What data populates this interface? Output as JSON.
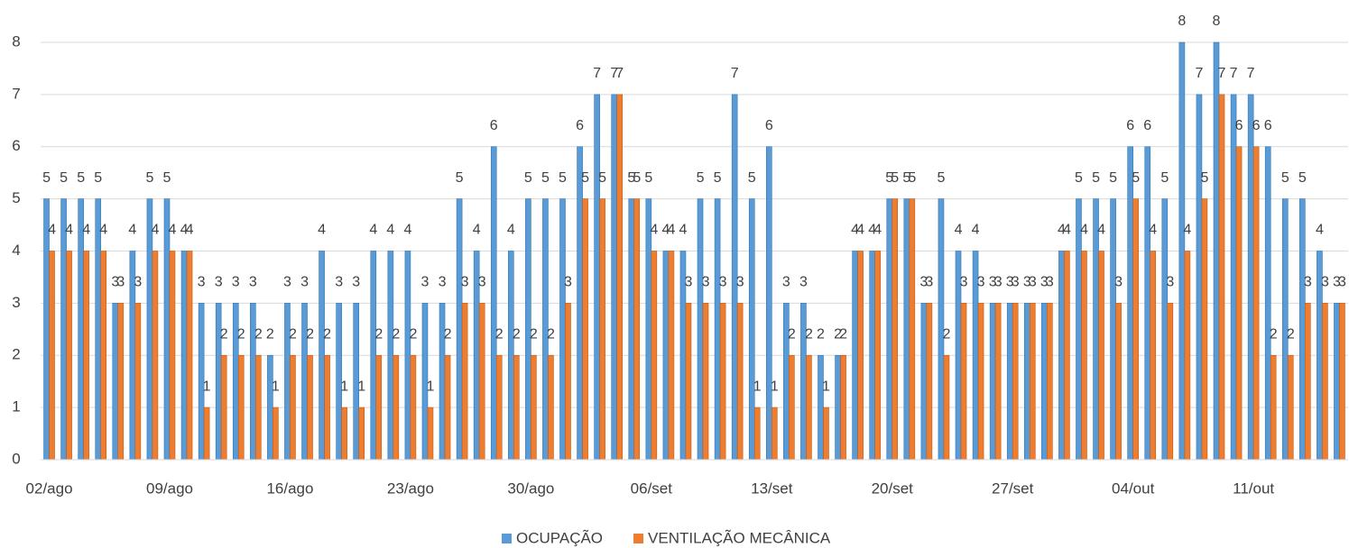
{
  "chart_data": {
    "type": "bar",
    "categories": [
      "02/ago",
      null,
      null,
      null,
      null,
      null,
      null,
      "09/ago",
      null,
      null,
      null,
      null,
      null,
      null,
      "16/ago",
      null,
      null,
      null,
      null,
      null,
      null,
      "23/ago",
      null,
      null,
      null,
      null,
      null,
      null,
      "30/ago",
      null,
      null,
      null,
      null,
      null,
      null,
      "06/set",
      null,
      null,
      null,
      null,
      null,
      null,
      "13/set",
      null,
      null,
      null,
      null,
      null,
      null,
      "20/set",
      null,
      null,
      null,
      null,
      null,
      null,
      "27/set",
      null,
      null,
      null,
      null,
      null,
      null,
      "04/out",
      null,
      null,
      null,
      null,
      null,
      null,
      "11/out",
      null,
      null,
      null,
      null,
      null
    ],
    "series": [
      {
        "name": "OCUPAÇÃO",
        "color": "#5b9bd5",
        "values": [
          5,
          5,
          5,
          5,
          3,
          4,
          5,
          5,
          4,
          3,
          3,
          3,
          3,
          2,
          3,
          3,
          4,
          3,
          3,
          4,
          4,
          4,
          3,
          3,
          5,
          4,
          6,
          4,
          5,
          5,
          5,
          6,
          7,
          7,
          5,
          5,
          4,
          4,
          5,
          5,
          7,
          5,
          6,
          3,
          3,
          2,
          2,
          4,
          4,
          5,
          5,
          3,
          5,
          4,
          4,
          3,
          3,
          3,
          3,
          4,
          5,
          5,
          5,
          6,
          6,
          5,
          8,
          7,
          8,
          7,
          7,
          6,
          5,
          5,
          4,
          3
        ]
      },
      {
        "name": "VENTILAÇÃO MECÂNICA",
        "color": "#ed7d31",
        "values": [
          4,
          4,
          4,
          4,
          3,
          3,
          4,
          4,
          4,
          1,
          2,
          2,
          2,
          1,
          2,
          2,
          2,
          1,
          1,
          2,
          2,
          2,
          1,
          2,
          3,
          3,
          2,
          2,
          2,
          2,
          3,
          5,
          5,
          7,
          5,
          4,
          4,
          3,
          3,
          3,
          3,
          1,
          1,
          2,
          2,
          1,
          2,
          4,
          4,
          5,
          5,
          3,
          2,
          3,
          3,
          3,
          3,
          3,
          3,
          4,
          4,
          4,
          3,
          5,
          4,
          3,
          4,
          5,
          7,
          6,
          6,
          2,
          2,
          3,
          3,
          3
        ]
      }
    ],
    "ylim": [
      0,
      8
    ],
    "yticks": [
      0,
      1,
      2,
      3,
      4,
      5,
      6,
      7,
      8
    ],
    "grid": true,
    "legend": "bottom"
  }
}
